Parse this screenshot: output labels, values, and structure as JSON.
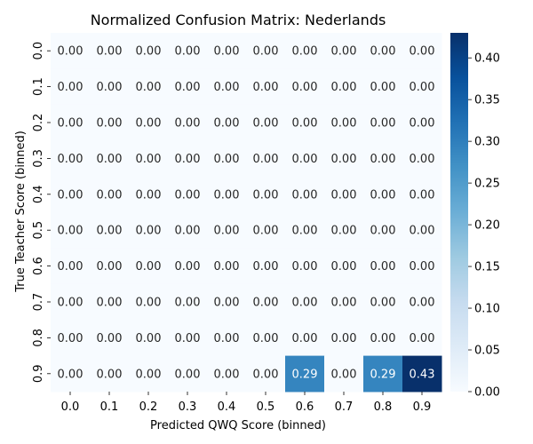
{
  "chart_data": {
    "type": "heatmap",
    "title": "Normalized Confusion Matrix: Nederlands",
    "xlabel": "Predicted QWQ Score (binned)",
    "ylabel": "True Teacher Score (binned)",
    "x_categories": [
      "0.0",
      "0.1",
      "0.2",
      "0.3",
      "0.4",
      "0.5",
      "0.6",
      "0.7",
      "0.8",
      "0.9"
    ],
    "y_categories": [
      "0.0",
      "0.1",
      "0.2",
      "0.3",
      "0.4",
      "0.5",
      "0.6",
      "0.7",
      "0.8",
      "0.9"
    ],
    "values": [
      [
        0,
        0,
        0,
        0,
        0,
        0,
        0,
        0,
        0,
        0
      ],
      [
        0,
        0,
        0,
        0,
        0,
        0,
        0,
        0,
        0,
        0
      ],
      [
        0,
        0,
        0,
        0,
        0,
        0,
        0,
        0,
        0,
        0
      ],
      [
        0,
        0,
        0,
        0,
        0,
        0,
        0,
        0,
        0,
        0
      ],
      [
        0,
        0,
        0,
        0,
        0,
        0,
        0,
        0,
        0,
        0
      ],
      [
        0,
        0,
        0,
        0,
        0,
        0,
        0,
        0,
        0,
        0
      ],
      [
        0,
        0,
        0,
        0,
        0,
        0,
        0,
        0,
        0,
        0
      ],
      [
        0,
        0,
        0,
        0,
        0,
        0,
        0,
        0,
        0,
        0
      ],
      [
        0,
        0,
        0,
        0,
        0,
        0,
        0,
        0,
        0,
        0
      ],
      [
        0,
        0,
        0,
        0,
        0,
        0,
        0.29,
        0,
        0.29,
        0.43
      ]
    ],
    "value_format": "0.00",
    "colormap": "Blues",
    "vmin": 0,
    "vmax": 0.43,
    "colorbar_ticks": [
      0.0,
      0.05,
      0.1,
      0.15,
      0.2,
      0.25,
      0.3,
      0.35,
      0.4
    ],
    "colorbar_tick_labels": [
      "0.00",
      "0.05",
      "0.10",
      "0.15",
      "0.20",
      "0.25",
      "0.30",
      "0.35",
      "0.40"
    ]
  }
}
